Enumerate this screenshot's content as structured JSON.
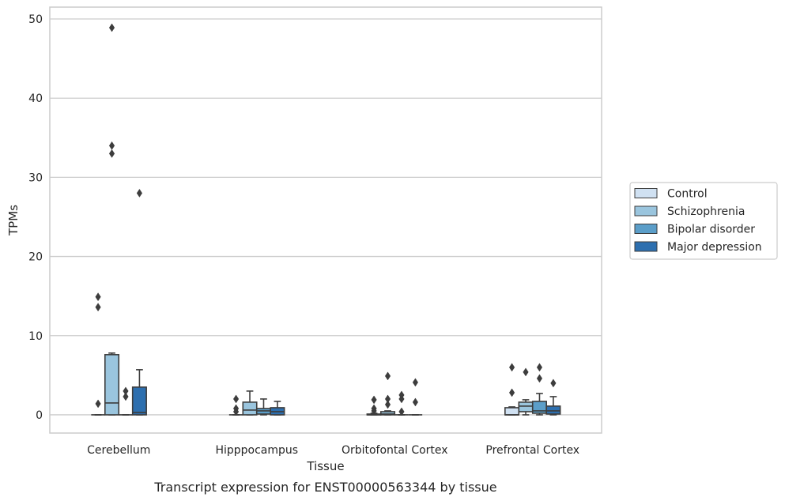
{
  "chart_data": {
    "type": "box",
    "title": "",
    "caption": "Transcript expression for ENST00000563344 by tissue",
    "xlabel": "Tissue",
    "ylabel": "TPMs",
    "ylim": [
      -2.3,
      51.5
    ],
    "yticks": [
      0,
      10,
      20,
      30,
      40,
      50
    ],
    "grid": "horizontal",
    "legend_position": "right",
    "categories": [
      "Cerebellum",
      "Hipppocampus",
      "Orbitofontal Cortex",
      "Prefrontal Cortex"
    ],
    "series": [
      {
        "name": "Control",
        "color": "#d0e1f2",
        "boxes": [
          {
            "whislo": 0,
            "q1": 0,
            "med": 0,
            "q3": 0,
            "whishi": 0,
            "fliers": [
              1.4,
              13.6,
              14.9
            ]
          },
          {
            "whislo": 0,
            "q1": 0,
            "med": 0,
            "q3": 0,
            "whishi": 0,
            "fliers": [
              0.4,
              0.8,
              2.0
            ]
          },
          {
            "whislo": 0,
            "q1": 0,
            "med": 0,
            "q3": 0.1,
            "whishi": 0.2,
            "fliers": [
              0.5,
              0.8,
              1.9
            ]
          },
          {
            "whislo": 0,
            "q1": 0,
            "med": 0,
            "q3": 0.9,
            "whishi": 1.0,
            "fliers": [
              2.8,
              6.0
            ]
          }
        ]
      },
      {
        "name": "Schizophrenia",
        "color": "#9ac5de",
        "boxes": [
          {
            "whislo": 0,
            "q1": 0,
            "med": 1.5,
            "q3": 7.6,
            "whishi": 7.8,
            "fliers": [
              33.0,
              34.0,
              48.9
            ]
          },
          {
            "whislo": 0,
            "q1": 0,
            "med": 0.6,
            "q3": 1.6,
            "whishi": 3.0,
            "fliers": []
          },
          {
            "whislo": 0,
            "q1": 0,
            "med": 0.1,
            "q3": 0.4,
            "whishi": 0.5,
            "fliers": [
              1.3,
              2.0,
              4.9
            ]
          },
          {
            "whislo": 0,
            "q1": 0.4,
            "med": 1.1,
            "q3": 1.6,
            "whishi": 1.9,
            "fliers": [
              5.4
            ]
          }
        ]
      },
      {
        "name": "Bipolar disorder",
        "color": "#5b9ec9",
        "boxes": [
          {
            "whislo": 0,
            "q1": 0,
            "med": 0,
            "q3": 0,
            "whishi": 0,
            "fliers": [
              2.3,
              3.0
            ]
          },
          {
            "whislo": 0,
            "q1": 0.1,
            "med": 0.5,
            "q3": 0.8,
            "whishi": 2.0,
            "fliers": []
          },
          {
            "whislo": 0,
            "q1": 0,
            "med": 0,
            "q3": 0,
            "whishi": 0,
            "fliers": [
              0.4,
              2.0,
              2.5
            ]
          },
          {
            "whislo": 0,
            "q1": 0.2,
            "med": 0.5,
            "q3": 1.7,
            "whishi": 2.7,
            "fliers": [
              4.6,
              6.0
            ]
          }
        ]
      },
      {
        "name": "Major depression",
        "color": "#2d6faf",
        "boxes": [
          {
            "whislo": 0,
            "q1": 0,
            "med": 0.3,
            "q3": 3.5,
            "whishi": 5.7,
            "fliers": [
              28.0
            ]
          },
          {
            "whislo": 0,
            "q1": 0,
            "med": 0.4,
            "q3": 0.9,
            "whishi": 1.7,
            "fliers": []
          },
          {
            "whislo": 0,
            "q1": 0,
            "med": 0,
            "q3": 0,
            "whishi": 0,
            "fliers": [
              1.6,
              4.1
            ]
          },
          {
            "whislo": 0,
            "q1": 0.1,
            "med": 0.5,
            "q3": 1.1,
            "whishi": 2.3,
            "fliers": [
              4.0
            ]
          }
        ]
      }
    ]
  }
}
